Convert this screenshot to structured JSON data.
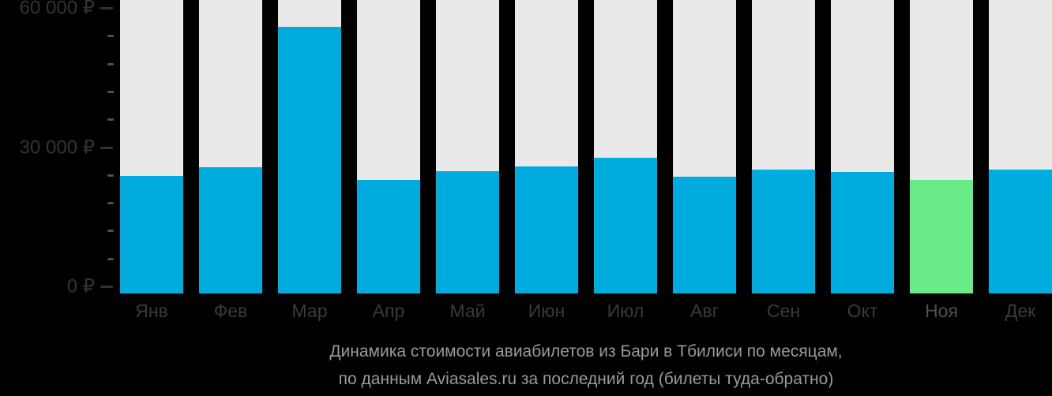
{
  "chart_data": {
    "type": "bar",
    "title": "Динамика стоимости авиабилетов из Бари в Тбилиси по месяцам, по данным Aviasales.ru за последний год (билеты туда-обратно)",
    "categories": [
      "Янв",
      "Фев",
      "Мар",
      "Апр",
      "Май",
      "Июн",
      "Июл",
      "Авг",
      "Сен",
      "Окт",
      "Ноя",
      "Дек"
    ],
    "values": [
      24000,
      25800,
      54500,
      23300,
      25000,
      26000,
      27800,
      23800,
      25400,
      24800,
      23200,
      25300
    ],
    "highlight_index": 10,
    "highlight_category": "Ноя",
    "xlabel": "",
    "ylabel": "",
    "ylim": [
      0,
      60000
    ],
    "currency": "₽",
    "y_ticks": [
      {
        "value": 0,
        "label": "0 ₽"
      },
      {
        "value": 30000,
        "label": "30 000 ₽"
      },
      {
        "value": 60000,
        "label": "60 000 ₽"
      }
    ],
    "minor_tick_step": 6000,
    "grid": false,
    "legend": false
  },
  "caption": {
    "line1": "Динамика стоимости авиабилетов из Бари в Тбилиси по месяцам,",
    "line2": "по данным Aviasales.ru за последний год (билеты туда-обратно)"
  },
  "colors": {
    "background": "#000000",
    "bar_track": "#e9e9e9",
    "bar": "#00acde",
    "bar_highlight": "#69eb87",
    "axis_label": "#333333",
    "minor_tick": "#4f4f4f",
    "month_label": "#3a3a3a",
    "caption_text": "#9a9a9a"
  }
}
